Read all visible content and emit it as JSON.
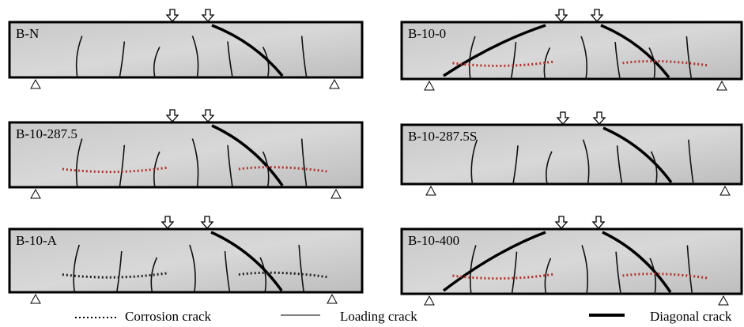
{
  "panels": [
    "B-N",
    "B-10-0",
    "B-10-287.5",
    "B-10-287.5S",
    "B-10-A",
    "B-10-400"
  ],
  "legend": [
    "Corrosion crack",
    "Loading crack",
    "Diagonal crack"
  ]
}
